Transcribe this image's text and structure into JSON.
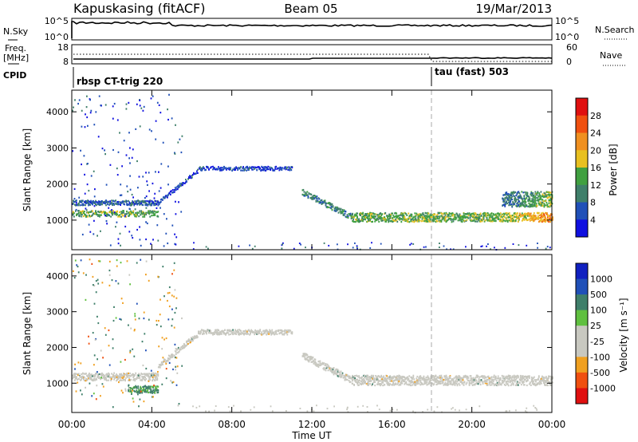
{
  "header": {
    "station": "Kapuskasing (fitACF)",
    "beam": "Beam 05",
    "date": "19/Mar/2013"
  },
  "labels": {
    "nsky": "N.Sky",
    "nsearch": "N.Search",
    "freq_line1": "Freq.",
    "freq_line2": "[MHz]",
    "nave": "Nave",
    "cpid": "CPID",
    "cpid_segment1": "rbsp CT-trig 220",
    "cpid_segment2": "tau (fast) 503",
    "range_axis": "Slant Range [km]",
    "time_axis": "Time UT",
    "power_label": "Power [dB]",
    "velocity_label": "Velocity [m s⁻¹]"
  },
  "ticks": {
    "noise_left": [
      "10^5",
      "10^0"
    ],
    "noise_right": [
      "10^5",
      "10^0"
    ],
    "freq_left": [
      "18",
      "8"
    ],
    "freq_right": [
      "60",
      "0"
    ],
    "time": [
      "00:00",
      "04:00",
      "08:00",
      "12:00",
      "16:00",
      "20:00",
      "00:00"
    ],
    "range": [
      "1000",
      "2000",
      "3000",
      "4000"
    ],
    "power": [
      "4",
      "8",
      "12",
      "16",
      "20",
      "24",
      "28"
    ],
    "velocity": [
      "-1000",
      "-500",
      "-100",
      "-25",
      "25",
      "100",
      "500",
      "1000"
    ]
  },
  "colors": {
    "power_scale": [
      "#1010e0",
      "#2050b8",
      "#3f7f6a",
      "#40a040",
      "#e8c020",
      "#f09020",
      "#f05010",
      "#e01010"
    ],
    "velocity_scale": [
      "#e01010",
      "#f05010",
      "#f0a020",
      "#c8c8c0",
      "#c8c8c0",
      "#60c040",
      "#3f7f6a",
      "#2050b8",
      "#1020c0"
    ],
    "ground_scatter": "#c8c8c0"
  },
  "chart_data": [
    {
      "type": "heatmap",
      "panel": "power",
      "xlabel": "Time UT",
      "ylabel": "Slant Range [km]",
      "xlim_hours": [
        0,
        24
      ],
      "ylim_km": [
        180,
        4600
      ],
      "colorbar": {
        "label": "Power [dB]",
        "range": [
          0,
          32
        ],
        "ticks": [
          4,
          8,
          12,
          16,
          20,
          24,
          28
        ]
      },
      "cpid_change_hour": 18,
      "scatter_bands": [
        {
          "t_start": 0.0,
          "t_end": 4.3,
          "range_km": 1200,
          "width_km": 120,
          "power_db": 14
        },
        {
          "t_start": 0.0,
          "t_end": 4.3,
          "range_km": 1500,
          "width_km": 100,
          "power_db": 7
        },
        {
          "t_start": 4.3,
          "t_end": 6.3,
          "range_km_start": 1500,
          "range_km_end": 2400,
          "width_km": 80,
          "power_db": 5
        },
        {
          "t_start": 6.3,
          "t_end": 11.0,
          "range_km": 2450,
          "width_km": 80,
          "power_db": 5
        },
        {
          "t_start": 11.5,
          "t_end": 14.0,
          "range_km_start": 1800,
          "range_km_end": 1100,
          "width_km": 120,
          "power_db": 10
        },
        {
          "t_start": 14.0,
          "t_end": 24.0,
          "range_km": 1100,
          "width_km": 180,
          "power_db": 14
        },
        {
          "t_start": 21.5,
          "t_end": 24.0,
          "range_km": 1600,
          "width_km": 300,
          "power_db": 6
        }
      ]
    },
    {
      "type": "heatmap",
      "panel": "velocity",
      "xlabel": "Time UT",
      "ylabel": "Slant Range [km]",
      "xlim_hours": [
        0,
        24
      ],
      "ylim_km": [
        180,
        4600
      ],
      "colorbar": {
        "label": "Velocity [m s⁻¹]",
        "ticks": [
          -1000,
          -500,
          -100,
          -25,
          25,
          100,
          500,
          1000
        ]
      },
      "cpid_change_hour": 18,
      "scatter_bands": [
        {
          "t_start": 0.0,
          "t_end": 4.3,
          "range_km": 1200,
          "width_km": 150,
          "velocity": 0
        },
        {
          "t_start": 2.8,
          "t_end": 4.3,
          "range_km": 850,
          "width_km": 150,
          "velocity": 150
        },
        {
          "t_start": 4.3,
          "t_end": 6.3,
          "range_km_start": 1500,
          "range_km_end": 2400,
          "width_km": 100,
          "velocity": 0
        },
        {
          "t_start": 6.3,
          "t_end": 11.0,
          "range_km": 2450,
          "width_km": 100,
          "velocity": 0
        },
        {
          "t_start": 11.5,
          "t_end": 14.0,
          "range_km_start": 1800,
          "range_km_end": 1100,
          "width_km": 140,
          "velocity": 0
        },
        {
          "t_start": 14.0,
          "t_end": 24.0,
          "range_km": 1100,
          "width_km": 200,
          "velocity": 0
        }
      ]
    }
  ]
}
